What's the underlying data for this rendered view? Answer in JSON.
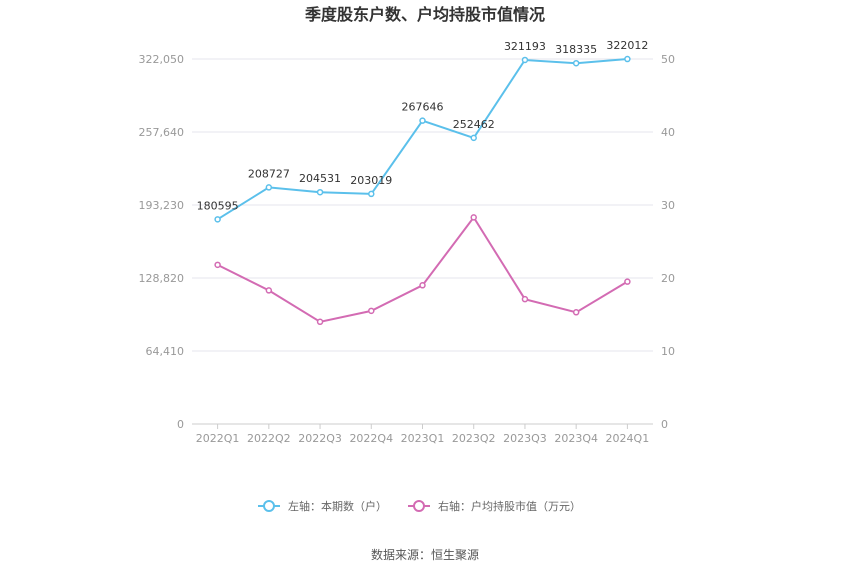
{
  "chart_data": {
    "type": "line",
    "title": "季度股东户数、户均持股市值情况",
    "categories": [
      "2022Q1",
      "2022Q2",
      "2022Q3",
      "2022Q4",
      "2023Q1",
      "2023Q2",
      "2023Q3",
      "2023Q4",
      "2024Q1"
    ],
    "left_axis": {
      "min": 0,
      "max": 322050,
      "ticks": [
        0,
        64410,
        128820,
        193230,
        257640,
        322050
      ],
      "tick_labels": [
        "0",
        "64,410",
        "128,820",
        "193,230",
        "257,640",
        "322,050"
      ]
    },
    "right_axis": {
      "min": 0,
      "max": 50,
      "ticks": [
        0,
        10,
        20,
        30,
        40,
        50
      ],
      "tick_labels": [
        "0",
        "10",
        "20",
        "30",
        "40",
        "50"
      ]
    },
    "series": [
      {
        "name": "左轴：本期数（户）",
        "axis": "left",
        "color": "#5bc0eb",
        "values": [
          180595,
          208727,
          204531,
          203019,
          267646,
          252462,
          321193,
          318335,
          322012
        ],
        "labels": [
          "180595",
          "208727",
          "204531",
          "203019",
          "267646",
          "252462",
          "321193",
          "318335",
          "322012"
        ]
      },
      {
        "name": "右轴：户均持股市值（万元）",
        "axis": "right",
        "color": "#d36bb3",
        "values": [
          21.8,
          18.3,
          14.0,
          15.5,
          19.0,
          28.3,
          17.1,
          15.3,
          19.5
        ]
      }
    ],
    "grid": true,
    "legend_position": "bottom"
  },
  "source": "数据来源：恒生聚源"
}
